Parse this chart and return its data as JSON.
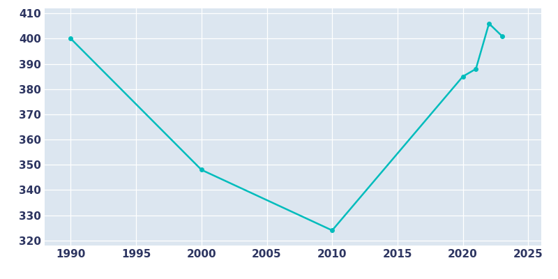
{
  "years": [
    1990,
    2000,
    2010,
    2020,
    2021,
    2022,
    2023
  ],
  "population": [
    400,
    348,
    324,
    385,
    388,
    406,
    401
  ],
  "line_color": "#00BCBC",
  "plot_bg_color": "#dce6f0",
  "fig_bg_color": "#ffffff",
  "xlabel": "",
  "ylabel": "",
  "ylim": [
    318,
    412
  ],
  "xlim": [
    1988,
    2026
  ],
  "yticks": [
    320,
    330,
    340,
    350,
    360,
    370,
    380,
    390,
    400,
    410
  ],
  "xticks": [
    1990,
    1995,
    2000,
    2005,
    2010,
    2015,
    2020,
    2025
  ],
  "tick_color": "#2d3561",
  "grid_color": "#ffffff",
  "line_width": 1.8,
  "marker_size": 4
}
